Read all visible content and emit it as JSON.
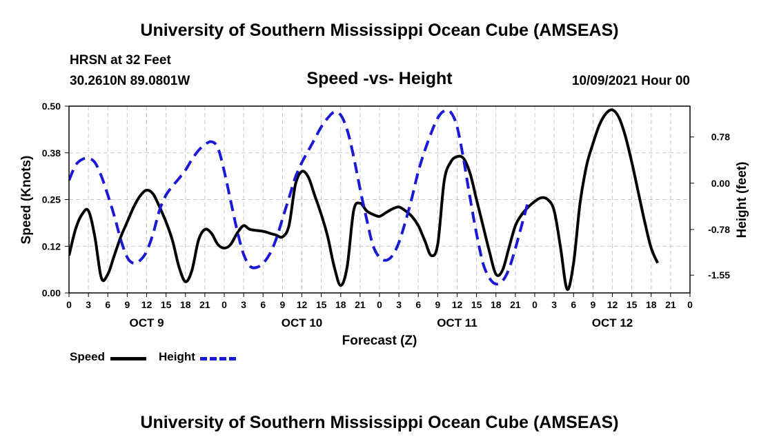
{
  "header": {
    "title": "University of Southern Mississippi Ocean Cube (AMSEAS)",
    "station": "HRSN at 32 Feet",
    "coords": "30.2610N  89.0801W",
    "subtitle": "Speed -vs- Height",
    "datetime": "10/09/2021 Hour 00"
  },
  "footer": {
    "title": "University of Southern Mississippi Ocean Cube (AMSEAS)"
  },
  "legend": {
    "speed_label": "Speed",
    "height_label": "Height",
    "speed_color": "#000000",
    "height_color": "#1a1ad6"
  },
  "chart_data": {
    "type": "line",
    "title": "Speed -vs- Height",
    "xlabel": "Forecast (Z)",
    "ylabel": "Speed (Knots)",
    "y2label": "Height (feet)",
    "x_range_hours": [
      0,
      96
    ],
    "ylim": [
      0,
      0.5
    ],
    "y2lim": [
      -1.85,
      1.3
    ],
    "y_ticks": [
      "0.00",
      "0.12",
      "0.25",
      "0.38",
      "0.50"
    ],
    "y2_ticks": [
      {
        "value": 0.78,
        "label": "0.78"
      },
      {
        "value": 0.0,
        "label": "0.00"
      },
      {
        "value": -0.78,
        "label": "-0.78"
      },
      {
        "value": -1.55,
        "label": "-1.55"
      }
    ],
    "x_tick_labels": [
      "0",
      "3",
      "6",
      "9",
      "12",
      "15",
      "18",
      "21",
      "0",
      "3",
      "6",
      "9",
      "12",
      "15",
      "18",
      "21",
      "0",
      "3",
      "6",
      "9",
      "12",
      "15",
      "18",
      "21",
      "0",
      "3",
      "6",
      "9",
      "12",
      "15",
      "18",
      "21",
      "0"
    ],
    "day_labels": [
      {
        "hour": 12,
        "label": "OCT 9"
      },
      {
        "hour": 36,
        "label": "OCT 10"
      },
      {
        "hour": 60,
        "label": "OCT 11"
      },
      {
        "hour": 84,
        "label": "OCT 12"
      }
    ],
    "grid": true,
    "series": [
      {
        "name": "Speed",
        "axis": "left",
        "style": "solid",
        "color": "#000000",
        "points": [
          [
            0,
            0.1
          ],
          [
            1,
            0.17
          ],
          [
            2,
            0.21
          ],
          [
            3,
            0.22
          ],
          [
            4,
            0.15
          ],
          [
            5,
            0.04
          ],
          [
            6,
            0.05
          ],
          [
            7,
            0.1
          ],
          [
            8,
            0.15
          ],
          [
            9,
            0.19
          ],
          [
            10,
            0.23
          ],
          [
            11,
            0.26
          ],
          [
            12,
            0.275
          ],
          [
            13,
            0.265
          ],
          [
            14,
            0.23
          ],
          [
            15,
            0.19
          ],
          [
            16,
            0.14
          ],
          [
            17,
            0.07
          ],
          [
            18,
            0.03
          ],
          [
            19,
            0.06
          ],
          [
            20,
            0.14
          ],
          [
            21,
            0.17
          ],
          [
            22,
            0.16
          ],
          [
            23,
            0.13
          ],
          [
            24,
            0.12
          ],
          [
            25,
            0.13
          ],
          [
            26,
            0.16
          ],
          [
            27,
            0.18
          ],
          [
            28,
            0.17
          ],
          [
            30,
            0.165
          ],
          [
            31,
            0.16
          ],
          [
            32,
            0.155
          ],
          [
            33,
            0.15
          ],
          [
            34,
            0.18
          ],
          [
            35,
            0.29
          ],
          [
            36,
            0.325
          ],
          [
            37,
            0.31
          ],
          [
            38,
            0.26
          ],
          [
            39,
            0.21
          ],
          [
            40,
            0.15
          ],
          [
            41,
            0.07
          ],
          [
            42,
            0.02
          ],
          [
            43,
            0.07
          ],
          [
            44,
            0.22
          ],
          [
            45,
            0.24
          ],
          [
            46,
            0.22
          ],
          [
            47,
            0.21
          ],
          [
            48,
            0.205
          ],
          [
            49,
            0.215
          ],
          [
            50,
            0.225
          ],
          [
            51,
            0.23
          ],
          [
            52,
            0.22
          ],
          [
            53,
            0.205
          ],
          [
            54,
            0.18
          ],
          [
            55,
            0.14
          ],
          [
            56,
            0.1
          ],
          [
            57,
            0.13
          ],
          [
            58,
            0.3
          ],
          [
            59,
            0.35
          ],
          [
            60,
            0.365
          ],
          [
            61,
            0.36
          ],
          [
            62,
            0.32
          ],
          [
            63,
            0.25
          ],
          [
            64,
            0.18
          ],
          [
            65,
            0.11
          ],
          [
            66,
            0.05
          ],
          [
            67,
            0.06
          ],
          [
            68,
            0.12
          ],
          [
            69,
            0.18
          ],
          [
            70,
            0.21
          ],
          [
            71,
            0.23
          ],
          [
            72,
            0.245
          ],
          [
            73,
            0.255
          ],
          [
            74,
            0.25
          ],
          [
            75,
            0.22
          ],
          [
            76,
            0.12
          ],
          [
            77,
            0.01
          ],
          [
            78,
            0.08
          ],
          [
            79,
            0.24
          ],
          [
            80,
            0.34
          ],
          [
            81,
            0.4
          ],
          [
            82,
            0.45
          ],
          [
            83,
            0.48
          ],
          [
            84,
            0.49
          ],
          [
            85,
            0.47
          ],
          [
            86,
            0.42
          ],
          [
            87,
            0.35
          ],
          [
            88,
            0.27
          ],
          [
            89,
            0.19
          ],
          [
            90,
            0.12
          ],
          [
            91,
            0.08
          ]
        ]
      },
      {
        "name": "Height",
        "axis": "right",
        "style": "dashed",
        "color": "#1a1ad6",
        "points": [
          [
            0,
            0.05
          ],
          [
            1,
            0.3
          ],
          [
            2,
            0.4
          ],
          [
            3,
            0.42
          ],
          [
            4,
            0.35
          ],
          [
            5,
            0.12
          ],
          [
            6,
            -0.2
          ],
          [
            7,
            -0.55
          ],
          [
            8,
            -0.95
          ],
          [
            9,
            -1.25
          ],
          [
            10,
            -1.35
          ],
          [
            11,
            -1.3
          ],
          [
            12,
            -1.15
          ],
          [
            13,
            -0.85
          ],
          [
            14,
            -0.45
          ],
          [
            15,
            -0.2
          ],
          [
            16,
            -0.05
          ],
          [
            17,
            0.08
          ],
          [
            18,
            0.22
          ],
          [
            19,
            0.4
          ],
          [
            20,
            0.55
          ],
          [
            21,
            0.65
          ],
          [
            22,
            0.7
          ],
          [
            23,
            0.6
          ],
          [
            24,
            0.2
          ],
          [
            25,
            -0.3
          ],
          [
            26,
            -0.8
          ],
          [
            27,
            -1.2
          ],
          [
            28,
            -1.4
          ],
          [
            29,
            -1.42
          ],
          [
            30,
            -1.35
          ],
          [
            31,
            -1.2
          ],
          [
            32,
            -0.95
          ],
          [
            33,
            -0.6
          ],
          [
            34,
            -0.25
          ],
          [
            35,
            0.1
          ],
          [
            36,
            0.35
          ],
          [
            37,
            0.55
          ],
          [
            38,
            0.75
          ],
          [
            39,
            0.95
          ],
          [
            40,
            1.1
          ],
          [
            41,
            1.2
          ],
          [
            42,
            1.15
          ],
          [
            43,
            0.9
          ],
          [
            44,
            0.45
          ],
          [
            45,
            -0.1
          ],
          [
            46,
            -0.6
          ],
          [
            47,
            -1.05
          ],
          [
            48,
            -1.25
          ],
          [
            49,
            -1.3
          ],
          [
            50,
            -1.22
          ],
          [
            51,
            -1.0
          ],
          [
            52,
            -0.65
          ],
          [
            53,
            -0.25
          ],
          [
            54,
            0.2
          ],
          [
            55,
            0.55
          ],
          [
            56,
            0.85
          ],
          [
            57,
            1.1
          ],
          [
            58,
            1.22
          ],
          [
            59,
            1.2
          ],
          [
            60,
            0.95
          ],
          [
            61,
            0.4
          ],
          [
            62,
            -0.25
          ],
          [
            63,
            -0.85
          ],
          [
            64,
            -1.35
          ],
          [
            65,
            -1.6
          ],
          [
            66,
            -1.7
          ],
          [
            67,
            -1.65
          ],
          [
            68,
            -1.45
          ],
          [
            69,
            -1.1
          ],
          [
            70,
            -0.7
          ],
          [
            71,
            -0.3
          ]
        ]
      }
    ]
  }
}
